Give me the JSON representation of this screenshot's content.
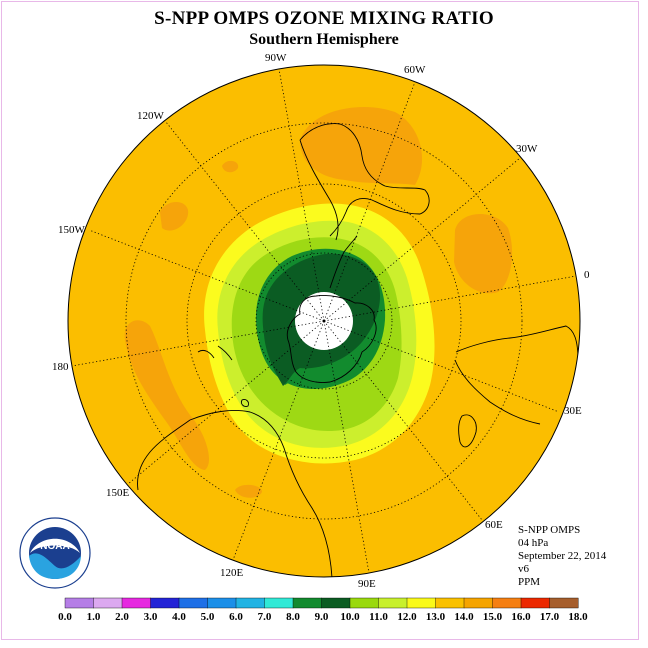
{
  "title": "S-NPP OMPS OZONE MIXING RATIO",
  "subtitle": "Southern Hemisphere",
  "longitude_labels": [
    "0",
    "30E",
    "60E",
    "90E",
    "120E",
    "150E",
    "180",
    "150W",
    "120W",
    "90W",
    "60W",
    "30W"
  ],
  "info_lines": [
    "S-NPP OMPS",
    "04 hPa",
    "September 22, 2014",
    "v6",
    "PPM"
  ],
  "logo_text": "NOAA",
  "colorbar": {
    "ticks": [
      "0.0",
      "1.0",
      "2.0",
      "3.0",
      "4.0",
      "5.0",
      "6.0",
      "7.0",
      "8.0",
      "9.0",
      "10.0",
      "11.0",
      "12.0",
      "13.0",
      "14.0",
      "15.0",
      "16.0",
      "17.0",
      "18.0"
    ],
    "colors": [
      "#b57ee6",
      "#dca9f0",
      "#e628e0",
      "#2323d6",
      "#1e6fe6",
      "#1b8fe8",
      "#21b3e3",
      "#30e9d6",
      "#128a2e",
      "#0b5c22",
      "#9ad90d",
      "#c8f02c",
      "#fafa1a",
      "#fac100",
      "#f5a400",
      "#f57f12",
      "#ec2800",
      "#a65e2c"
    ]
  },
  "map_colors": {
    "background": "#fbbe00",
    "high": "#f6a40a",
    "yellow": "#fbfb1e",
    "yellow_green": "#ccef2d",
    "light_green": "#9ed914",
    "green": "#128b2e",
    "dark_green": "#0b5c23"
  }
}
